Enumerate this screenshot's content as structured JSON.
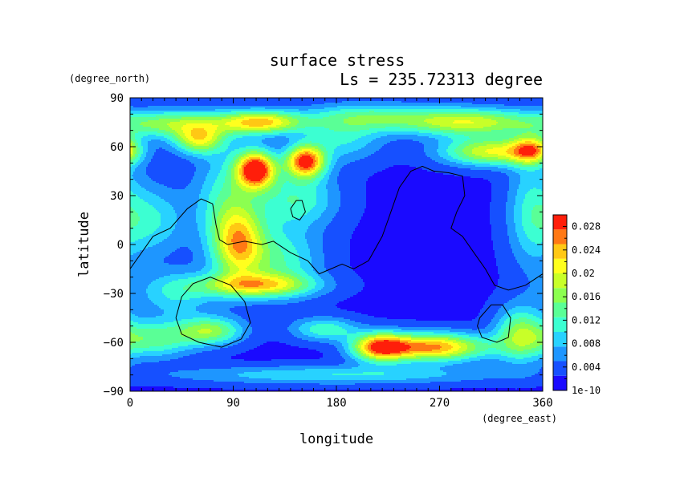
{
  "chart_data": {
    "type": "heatmap",
    "title": "surface stress",
    "subtitle": "Ls = 235.72313 degree",
    "xlabel": "longitude",
    "ylabel": "latitude",
    "xunit": "(degree_east)",
    "yunit": "(degree_north)",
    "xlim": [
      0,
      360
    ],
    "ylim": [
      -90,
      90
    ],
    "x_ticks": [
      "0",
      "90",
      "180",
      "270",
      "360"
    ],
    "y_ticks": [
      "90",
      "60",
      "30",
      "0",
      "−30",
      "−60",
      "−90"
    ],
    "colorbar": {
      "min_label": "1e-10",
      "max": 0.03,
      "ticks": [
        "0.004",
        "0.008",
        "0.012",
        "0.016",
        "0.02",
        "0.024",
        "0.028"
      ],
      "colors": [
        "#1a0aff",
        "#1650ff",
        "#1e96ff",
        "#28d2ff",
        "#3cffd2",
        "#5aff96",
        "#8cff50",
        "#c8ff28",
        "#ffff1e",
        "#ffc814",
        "#ff7814",
        "#ff1e0a"
      ]
    },
    "background_value": 0.002,
    "features": [
      {
        "lon": 110,
        "lat": 46,
        "value": 0.028,
        "rlon": 12,
        "rlat": 8
      },
      {
        "lon": 153,
        "lat": 51,
        "value": 0.026,
        "rlon": 12,
        "rlat": 7
      },
      {
        "lon": 220,
        "lat": -63,
        "value": 0.029,
        "rlon": 18,
        "rlat": 6
      },
      {
        "lon": 115,
        "lat": 75,
        "value": 0.02,
        "rlon": 25,
        "rlat": 5
      },
      {
        "lon": 40,
        "lat": 74,
        "value": 0.014,
        "rlon": 35,
        "rlat": 6
      },
      {
        "lon": 60,
        "lat": 64,
        "value": 0.016,
        "rlon": 15,
        "rlat": 6
      },
      {
        "lon": 295,
        "lat": 75,
        "value": 0.017,
        "rlon": 40,
        "rlat": 6
      },
      {
        "lon": 315,
        "lat": 57,
        "value": 0.018,
        "rlon": 30,
        "rlat": 6
      },
      {
        "lon": 350,
        "lat": 58,
        "value": 0.016,
        "rlon": 12,
        "rlat": 6
      },
      {
        "lon": 95,
        "lat": 0,
        "value": 0.016,
        "rlon": 15,
        "rlat": 15
      },
      {
        "lon": 110,
        "lat": -25,
        "value": 0.016,
        "rlon": 35,
        "rlat": 5
      },
      {
        "lon": 130,
        "lat": -10,
        "value": 0.01,
        "rlon": 25,
        "rlat": 15
      },
      {
        "lon": 85,
        "lat": 25,
        "value": 0.01,
        "rlon": 20,
        "rlat": 25
      },
      {
        "lon": 145,
        "lat": 28,
        "value": 0.01,
        "rlon": 25,
        "rlat": 12
      },
      {
        "lon": 70,
        "lat": -53,
        "value": 0.014,
        "rlon": 20,
        "rlat": 6
      },
      {
        "lon": 20,
        "lat": -58,
        "value": 0.012,
        "rlon": 25,
        "rlat": 8
      },
      {
        "lon": 260,
        "lat": -63,
        "value": 0.016,
        "rlon": 20,
        "rlat": 6
      },
      {
        "lon": 290,
        "lat": -63,
        "value": 0.012,
        "rlon": 25,
        "rlat": 6
      },
      {
        "lon": 340,
        "lat": -55,
        "value": 0.013,
        "rlon": 15,
        "rlat": 12
      },
      {
        "lon": 170,
        "lat": -52,
        "value": 0.01,
        "rlon": 20,
        "rlat": 5
      },
      {
        "lon": 20,
        "lat": 15,
        "value": 0.008,
        "rlon": 20,
        "rlat": 15
      },
      {
        "lon": 350,
        "lat": 20,
        "value": 0.008,
        "rlon": 15,
        "rlat": 25
      },
      {
        "lon": 210,
        "lat": 78,
        "value": 0.01,
        "rlon": 40,
        "rlat": 6
      },
      {
        "lon": 180,
        "lat": -80,
        "value": 0.008,
        "rlon": 100,
        "rlat": 4
      },
      {
        "lon": 40,
        "lat": -30,
        "value": 0.008,
        "rlon": 25,
        "rlat": 10
      },
      {
        "lon": 185,
        "lat": 65,
        "value": 0.008,
        "rlon": 25,
        "rlat": 10
      }
    ],
    "contours": [
      [
        [
          0,
          -15
        ],
        [
          10,
          -5
        ],
        [
          20,
          5
        ],
        [
          35,
          10
        ],
        [
          50,
          22
        ],
        [
          62,
          28
        ],
        [
          72,
          25
        ],
        [
          75,
          12
        ],
        [
          78,
          3
        ],
        [
          85,
          0
        ],
        [
          100,
          2
        ],
        [
          115,
          0
        ],
        [
          125,
          2
        ],
        [
          140,
          -5
        ],
        [
          155,
          -10
        ],
        [
          165,
          -18
        ],
        [
          175,
          -15
        ],
        [
          185,
          -12
        ],
        [
          195,
          -15
        ],
        [
          208,
          -10
        ],
        [
          220,
          5
        ],
        [
          225,
          15
        ],
        [
          230,
          25
        ],
        [
          235,
          35
        ],
        [
          245,
          45
        ],
        [
          255,
          48
        ],
        [
          265,
          45
        ],
        [
          278,
          44
        ],
        [
          290,
          42
        ],
        [
          292,
          30
        ],
        [
          285,
          20
        ],
        [
          280,
          10
        ],
        [
          290,
          5
        ],
        [
          300,
          -5
        ],
        [
          310,
          -15
        ],
        [
          318,
          -25
        ],
        [
          330,
          -28
        ],
        [
          345,
          -25
        ],
        [
          360,
          -18
        ]
      ],
      [
        [
          140,
          22
        ],
        [
          145,
          27
        ],
        [
          150,
          27
        ],
        [
          153,
          20
        ],
        [
          148,
          15
        ],
        [
          142,
          17
        ],
        [
          140,
          22
        ]
      ],
      [
        [
          40,
          -45
        ],
        [
          45,
          -32
        ],
        [
          55,
          -24
        ],
        [
          70,
          -20
        ],
        [
          88,
          -25
        ],
        [
          100,
          -35
        ],
        [
          105,
          -48
        ],
        [
          97,
          -58
        ],
        [
          80,
          -63
        ],
        [
          60,
          -60
        ],
        [
          45,
          -55
        ],
        [
          40,
          -45
        ]
      ],
      [
        [
          305,
          -45
        ],
        [
          315,
          -37
        ],
        [
          325,
          -37
        ],
        [
          332,
          -45
        ],
        [
          330,
          -57
        ],
        [
          320,
          -60
        ],
        [
          307,
          -57
        ],
        [
          303,
          -50
        ],
        [
          305,
          -45
        ]
      ]
    ]
  }
}
